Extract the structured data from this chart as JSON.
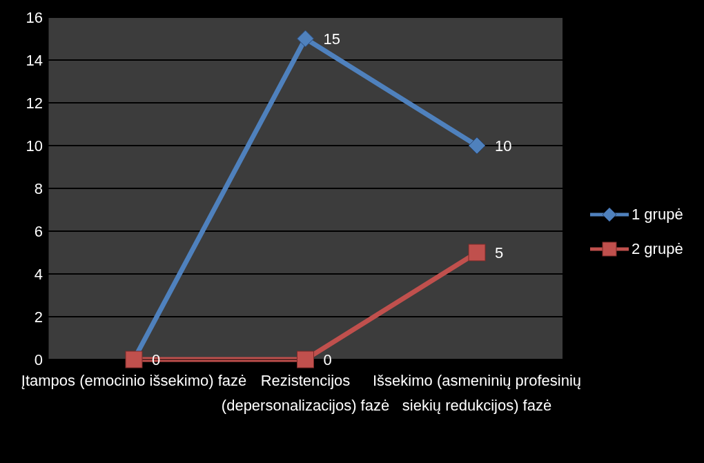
{
  "chart_data": {
    "type": "line",
    "categories": [
      "Įtampos (emocinio išsekimo) fazė",
      "Rezistencijos (depersonalizacijos) fazė",
      "Išsekimo (asmeninių profesinių siekių redukcijos) fazė"
    ],
    "series": [
      {
        "name": "1 grupė",
        "color": "#4f81bd",
        "values": [
          0,
          15,
          10
        ],
        "marker": "diamond",
        "value_labels": [
          null,
          "15",
          "10"
        ]
      },
      {
        "name": "2 grupė",
        "color": "#c0504d",
        "values": [
          0,
          0,
          5
        ],
        "marker": "square",
        "value_labels": [
          "0",
          "0",
          "5"
        ]
      }
    ],
    "ylim": [
      0,
      16
    ],
    "yticks": [
      0,
      2,
      4,
      6,
      8,
      10,
      12,
      14,
      16
    ],
    "grid": "y",
    "legend": "right"
  }
}
